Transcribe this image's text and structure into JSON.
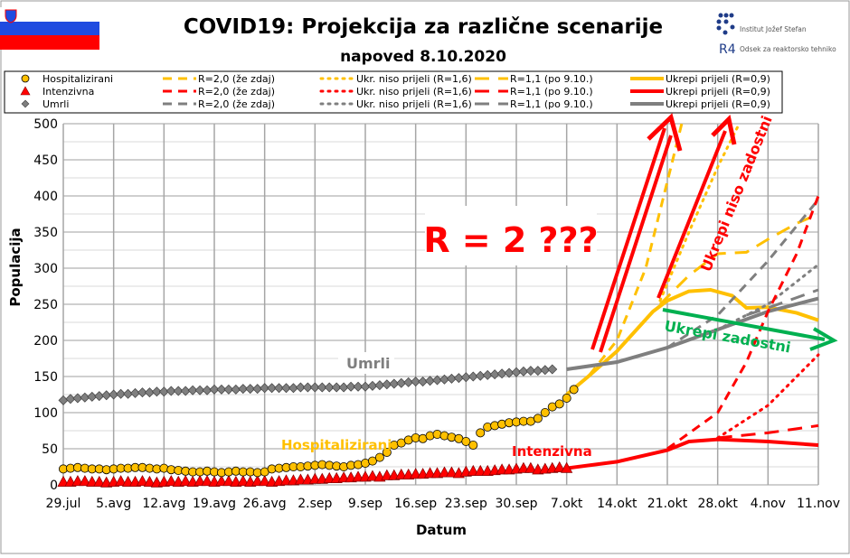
{
  "header": {
    "title": "COVID19: Projekcija za različne scenarije",
    "subtitle": "napoved 8.10.2020",
    "logo_ijs": "Institut Jožef Stefan",
    "logo_r4_mark": "R4",
    "logo_r4": "Odsek za reaktorsko tehniko",
    "flag": "slovenia-flag"
  },
  "legend": {
    "rows": [
      {
        "marker": "circle",
        "color": "#FFC000",
        "label": "Hospitalizirani",
        "r20": "R=2,0 (že zdaj)",
        "r16": "Ukr. niso prijeli (R=1,6)",
        "r11": "R=1,1 (po 9.10.)",
        "r09": "Ukrepi prijeli (R=0,9)"
      },
      {
        "marker": "triangle",
        "color": "#FF0000",
        "label": "Intenzivna",
        "r20": "R=2,0 (že zdaj)",
        "r16": "Ukr. niso prijeli (R=1,6)",
        "r11": "R=1,1 (po 9.10.)",
        "r09": "Ukrepi prijeli (R=0,9)"
      },
      {
        "marker": "diamond",
        "color": "#7F7F7F",
        "label": "Umrli",
        "r20": "R=2,0 (že zdaj)",
        "r16": "Ukr. niso prijeli (R=1,6)",
        "r11": "R=1,1 (po 9.10.)",
        "r09": "Ukrepi prijeli (R=0,9)"
      }
    ]
  },
  "annotations": {
    "r2": "R = 2 ???",
    "niso_zadostni": "Ukrepi niso zadostni",
    "zadostni": "Ukrepi zadostni",
    "label_umrli": "Umrli",
    "label_hosp": "Hospitalizirani",
    "label_int": "Intenzivna"
  },
  "chart_data": {
    "type": "line",
    "xlabel": "Datum",
    "ylabel": "Populacija",
    "ylim": [
      0,
      500
    ],
    "yticks": [
      0,
      50,
      100,
      150,
      200,
      250,
      300,
      350,
      400,
      450,
      500
    ],
    "xlim": [
      "2020-07-29",
      "2020-11-11"
    ],
    "xtick_labels": [
      "29.jul",
      "5.avg",
      "12.avg",
      "19.avg",
      "26.avg",
      "2.sep",
      "9.sep",
      "16.sep",
      "23.sep",
      "30.sep",
      "7.okt",
      "14.okt",
      "21.okt",
      "28.okt",
      "4.nov",
      "11.nov"
    ],
    "grid": true,
    "observed": {
      "start": "2020-07-29",
      "Umrli": [
        117,
        119,
        120,
        121,
        122,
        123,
        124,
        125,
        126,
        126,
        127,
        128,
        128,
        129,
        129,
        130,
        130,
        130,
        131,
        131,
        131,
        132,
        132,
        132,
        132,
        133,
        133,
        133,
        134,
        134,
        134,
        134,
        134,
        135,
        135,
        135,
        135,
        135,
        135,
        135,
        136,
        136,
        136,
        137,
        138,
        139,
        140,
        141,
        142,
        143,
        143,
        144,
        145,
        146,
        147,
        148,
        149,
        150,
        151,
        152,
        153,
        154,
        155,
        156,
        157,
        158,
        158,
        159,
        160
      ],
      "Hospitalizirani": [
        22,
        23,
        24,
        23,
        22,
        22,
        21,
        22,
        23,
        23,
        24,
        24,
        23,
        22,
        23,
        21,
        20,
        19,
        18,
        18,
        19,
        18,
        17,
        18,
        19,
        18,
        18,
        17,
        18,
        22,
        23,
        24,
        25,
        25,
        26,
        27,
        28,
        27,
        26,
        25,
        27,
        28,
        30,
        33,
        38,
        45,
        55,
        58,
        62,
        65,
        64,
        68,
        70,
        68,
        66,
        64,
        60,
        55,
        72,
        80,
        82,
        84,
        86,
        87,
        88,
        88,
        92,
        100,
        108,
        112,
        120,
        132
      ],
      "Intenzivna": [
        3,
        3,
        4,
        4,
        3,
        3,
        2,
        3,
        4,
        3,
        3,
        4,
        3,
        2,
        3,
        4,
        3,
        4,
        3,
        4,
        4,
        3,
        4,
        4,
        3,
        4,
        3,
        4,
        4,
        3,
        4,
        5,
        5,
        6,
        6,
        7,
        7,
        8,
        8,
        9,
        9,
        10,
        10,
        11,
        10,
        12,
        12,
        13,
        13,
        14,
        14,
        15,
        15,
        16,
        16,
        15,
        17,
        18,
        18,
        18,
        19,
        20,
        20,
        21,
        22,
        22,
        20,
        21,
        22,
        23,
        22
      ]
    },
    "series": [
      {
        "group": "Hospitalizirani",
        "name": "Ukrepi prijeli (R=0,9)",
        "color": "#FFC000",
        "style": "solid",
        "points": [
          [
            "2020-10-07",
            125
          ],
          [
            "2020-10-10",
            150
          ],
          [
            "2020-10-14",
            185
          ],
          [
            "2020-10-19",
            240
          ],
          [
            "2020-10-21",
            255
          ],
          [
            "2020-10-24",
            268
          ],
          [
            "2020-10-27",
            270
          ],
          [
            "2020-10-30",
            262
          ],
          [
            "2020-11-01",
            245
          ],
          [
            "2020-11-04",
            246
          ],
          [
            "2020-11-08",
            238
          ],
          [
            "2020-11-11",
            228
          ]
        ]
      },
      {
        "group": "Hospitalizirani",
        "name": "R=2,0 (že zdaj)",
        "color": "#FFC000",
        "style": "dash",
        "points": [
          [
            "2020-10-07",
            125
          ],
          [
            "2020-10-10",
            150
          ],
          [
            "2020-10-14",
            200
          ],
          [
            "2020-10-18",
            300
          ],
          [
            "2020-10-21",
            420
          ],
          [
            "2020-10-23",
            500
          ]
        ]
      },
      {
        "group": "Hospitalizirani",
        "name": "Ukr. niso prijeli (R=1,6)",
        "color": "#FFC000",
        "style": "dot",
        "points": [
          [
            "2020-10-20",
            255
          ],
          [
            "2020-10-24",
            350
          ],
          [
            "2020-10-28",
            440
          ],
          [
            "2020-10-31",
            500
          ]
        ]
      },
      {
        "group": "Hospitalizirani",
        "name": "R=1,1 (po 9.10.)",
        "color": "#FFC000",
        "style": "longdash",
        "points": [
          [
            "2020-10-20",
            250
          ],
          [
            "2020-10-24",
            290
          ],
          [
            "2020-10-28",
            320
          ],
          [
            "2020-11-01",
            322
          ],
          [
            "2020-11-04",
            340
          ],
          [
            "2020-11-08",
            362
          ],
          [
            "2020-11-11",
            375
          ]
        ]
      },
      {
        "group": "Umrli",
        "name": "Ukrepi prijeli (R=0,9)",
        "color": "#7F7F7F",
        "style": "solid",
        "points": [
          [
            "2020-10-07",
            160
          ],
          [
            "2020-10-14",
            170
          ],
          [
            "2020-10-21",
            190
          ],
          [
            "2020-10-28",
            215
          ],
          [
            "2020-11-04",
            240
          ],
          [
            "2020-11-11",
            258
          ]
        ]
      },
      {
        "group": "Umrli",
        "name": "R=2,0 (že zdaj)",
        "color": "#7F7F7F",
        "style": "dash",
        "points": [
          [
            "2020-10-21",
            190
          ],
          [
            "2020-10-28",
            235
          ],
          [
            "2020-11-04",
            310
          ],
          [
            "2020-11-11",
            395
          ]
        ]
      },
      {
        "group": "Umrli",
        "name": "Ukr. niso prijeli (R=1,6)",
        "color": "#7F7F7F",
        "style": "dot",
        "points": [
          [
            "2020-10-28",
            215
          ],
          [
            "2020-11-04",
            250
          ],
          [
            "2020-11-11",
            305
          ]
        ]
      },
      {
        "group": "Umrli",
        "name": "R=1,1 (po 9.10.)",
        "color": "#7F7F7F",
        "style": "longdash",
        "points": [
          [
            "2020-11-01",
            235
          ],
          [
            "2020-11-04",
            245
          ],
          [
            "2020-11-11",
            270
          ]
        ]
      },
      {
        "group": "Intenzivna",
        "name": "Ukrepi prijeli (R=0,9)",
        "color": "#FF0000",
        "style": "solid",
        "points": [
          [
            "2020-10-07",
            23
          ],
          [
            "2020-10-14",
            32
          ],
          [
            "2020-10-21",
            48
          ],
          [
            "2020-10-24",
            60
          ],
          [
            "2020-10-28",
            63
          ],
          [
            "2020-11-04",
            60
          ],
          [
            "2020-11-11",
            55
          ]
        ]
      },
      {
        "group": "Intenzivna",
        "name": "R=2,0 (že zdaj)",
        "color": "#FF0000",
        "style": "dash",
        "points": [
          [
            "2020-10-21",
            50
          ],
          [
            "2020-10-28",
            100
          ],
          [
            "2020-11-01",
            170
          ],
          [
            "2020-11-04",
            240
          ],
          [
            "2020-11-08",
            320
          ],
          [
            "2020-11-11",
            400
          ]
        ]
      },
      {
        "group": "Intenzivna",
        "name": "Ukr. niso prijeli (R=1,6)",
        "color": "#FF0000",
        "style": "dot",
        "points": [
          [
            "2020-10-28",
            65
          ],
          [
            "2020-11-04",
            110
          ],
          [
            "2020-11-11",
            180
          ]
        ]
      },
      {
        "group": "Intenzivna",
        "name": "R=1,1 (po 9.10.)",
        "color": "#FF0000",
        "style": "longdash",
        "points": [
          [
            "2020-10-28",
            65
          ],
          [
            "2020-11-04",
            72
          ],
          [
            "2020-11-11",
            82
          ]
        ]
      }
    ]
  }
}
